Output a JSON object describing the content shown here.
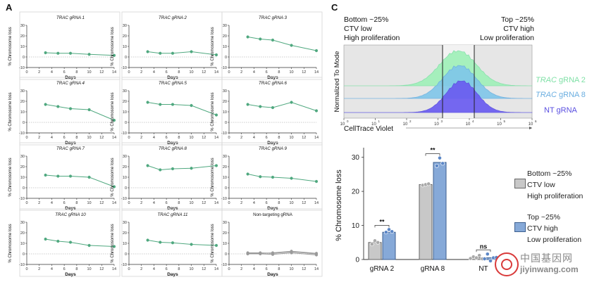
{
  "panel_labels": {
    "a": "A",
    "c": "C"
  },
  "panel_a": {
    "ylabel": "% Chromosome loss",
    "xlabel": "Days",
    "x_ticks": [
      "0",
      "2",
      "4",
      "6",
      "8",
      "10",
      "12",
      "14"
    ],
    "y_ticks": [
      "-10",
      "0",
      "10",
      "20",
      "30"
    ],
    "line_color": "#4fa87f",
    "nt_color": "#9a9a9a"
  },
  "panel_c_hist": {
    "bottom_caption": [
      "Bottom ~25%",
      "CTV low",
      "High proliferation"
    ],
    "top_caption": [
      "Top ~25%",
      "CTV high",
      "Low proliferation"
    ],
    "ylabel": "Normalized To Mode",
    "xlabel": "CellTrace Violet",
    "x_tick_base": "10",
    "x_tick_exps": [
      "0",
      "1",
      "2",
      "3",
      "4",
      "5",
      "6"
    ],
    "legend": [
      {
        "italic": "TRAC",
        "rest": " gRNA 2",
        "color": "#7fe0a6"
      },
      {
        "italic": "TRAC",
        "rest": " gRNA 8",
        "color": "#6aaee0"
      },
      {
        "italic": "",
        "rest": "NT gRNA",
        "color": "#5a4fe0"
      }
    ]
  },
  "panel_c_bar": {
    "ylabel": "% Chromosome loss",
    "y_ticks": [
      "0",
      "10",
      "20",
      "30"
    ],
    "legend_bottom": [
      "Bottom ~25%",
      "CTV low",
      "High proliferation"
    ],
    "legend_top": [
      "Top ~25%",
      "CTV high",
      "Low proliferation"
    ],
    "legend_colors": {
      "bottom": "#c8c8c8",
      "top": "#86a9d8"
    }
  },
  "watermark": {
    "title": "中国基因网",
    "url": "jiyinwang.com"
  },
  "chart_data": [
    {
      "type": "line",
      "title": "TRAC gRNA 1",
      "x": [
        3,
        5,
        7,
        10,
        14
      ],
      "y": [
        4,
        3.5,
        3.5,
        2.5,
        1.5
      ],
      "xlim": [
        0,
        14
      ],
      "ylim": [
        -10,
        30
      ]
    },
    {
      "type": "line",
      "title": "TRAC gRNA 2",
      "x": [
        3,
        5,
        7,
        10,
        14
      ],
      "y": [
        5,
        3.5,
        3.5,
        5,
        2
      ],
      "xlim": [
        0,
        14
      ],
      "ylim": [
        -10,
        30
      ]
    },
    {
      "type": "line",
      "title": "TRAC gRNA 3",
      "x": [
        3,
        5,
        7,
        10,
        14
      ],
      "y": [
        19,
        17,
        16,
        11,
        6
      ],
      "xlim": [
        0,
        14
      ],
      "ylim": [
        -10,
        30
      ]
    },
    {
      "type": "line",
      "title": "TRAC gRNA 4",
      "x": [
        3,
        5,
        7,
        10,
        14
      ],
      "y": [
        17,
        15,
        13,
        12,
        2
      ],
      "xlim": [
        0,
        14
      ],
      "ylim": [
        -10,
        30
      ]
    },
    {
      "type": "line",
      "title": "TRAC gRNA 5",
      "x": [
        3,
        5,
        7,
        10,
        14
      ],
      "y": [
        19,
        17,
        17,
        16,
        7
      ],
      "xlim": [
        0,
        14
      ],
      "ylim": [
        -10,
        30
      ]
    },
    {
      "type": "line",
      "title": "TRAC gRNA 6",
      "x": [
        3,
        5,
        7,
        10,
        14
      ],
      "y": [
        17,
        15,
        14,
        19,
        11
      ],
      "xlim": [
        0,
        14
      ],
      "ylim": [
        -10,
        30
      ]
    },
    {
      "type": "line",
      "title": "TRAC gRNA 7",
      "x": [
        3,
        5,
        7,
        10,
        14
      ],
      "y": [
        12,
        11,
        11,
        10,
        1
      ],
      "xlim": [
        0,
        14
      ],
      "ylim": [
        -10,
        30
      ]
    },
    {
      "type": "line",
      "title": "TRAC gRNA 8",
      "x": [
        3,
        5,
        7,
        10,
        14
      ],
      "y": [
        21,
        17,
        18,
        18.5,
        21
      ],
      "xlim": [
        0,
        14
      ],
      "ylim": [
        -10,
        30
      ]
    },
    {
      "type": "line",
      "title": "TRAC gRNA 9",
      "x": [
        3,
        5,
        7,
        10,
        14
      ],
      "y": [
        13,
        10.5,
        10,
        9,
        6
      ],
      "xlim": [
        0,
        14
      ],
      "ylim": [
        -10,
        30
      ]
    },
    {
      "type": "line",
      "title": "TRAC gRNA 10",
      "x": [
        3,
        5,
        7,
        10,
        14
      ],
      "y": [
        14,
        12,
        11,
        8,
        7
      ],
      "xlim": [
        0,
        14
      ],
      "ylim": [
        -10,
        30
      ]
    },
    {
      "type": "line",
      "title": "TRAC gRNA 11",
      "x": [
        3,
        5,
        7,
        10,
        14
      ],
      "y": [
        13,
        11,
        10.5,
        9,
        8
      ],
      "xlim": [
        0,
        14
      ],
      "ylim": [
        -10,
        30
      ]
    },
    {
      "type": "line",
      "title": "Non-targeting gRNA",
      "x": [
        3,
        5,
        7,
        10,
        14
      ],
      "series": [
        {
          "values": [
            1,
            1,
            0.5,
            2,
            0
          ]
        },
        {
          "values": [
            0,
            0,
            -0.5,
            1,
            -1
          ]
        },
        {
          "values": [
            0.5,
            0.5,
            1,
            2.5,
            0.5
          ]
        }
      ],
      "xlim": [
        0,
        14
      ],
      "ylim": [
        -10,
        30
      ]
    },
    {
      "type": "bar",
      "title": "",
      "categories": [
        "gRNA 2",
        "gRNA 8",
        "NT"
      ],
      "series": [
        {
          "name": "Bottom ~25%",
          "values": [
            5,
            22,
            0.5
          ]
        },
        {
          "name": "Top ~25%",
          "values": [
            8,
            28.5,
            0.5
          ]
        }
      ],
      "points": [
        [
          [
            4.5,
            5.5,
            5
          ],
          [
            8,
            8.8,
            8.2
          ]
        ],
        [
          [
            21.8,
            22,
            22.2
          ],
          [
            27.5,
            29.8,
            28.2
          ]
        ],
        [
          [
            0.3,
            0.8,
            0.5,
            1.2,
            0.2
          ],
          [
            0.2,
            1.6,
            -0.4,
            0.5,
            0.6
          ]
        ]
      ],
      "significance": [
        "**",
        "**",
        "ns"
      ],
      "ylabel": "% Chromosome loss",
      "ylim": [
        0,
        32
      ]
    }
  ]
}
